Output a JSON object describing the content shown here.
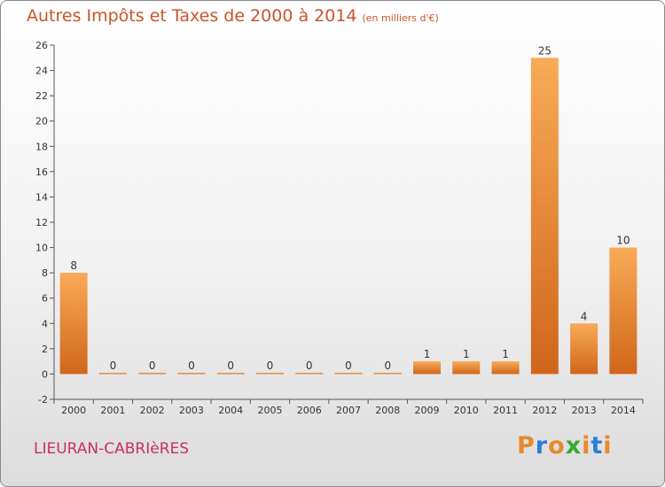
{
  "title": "Autres Impôts et Taxes de 2000 à 2014",
  "subtitle": "(en milliers d'€)",
  "place": "LIEURAN-CABRIèRES",
  "brand": {
    "letters": [
      "P",
      "r",
      "o",
      "x",
      "i",
      "t",
      "i"
    ],
    "colors": [
      "#e8892a",
      "#2a7fd6",
      "#e8892a",
      "#3aa838",
      "#e8892a",
      "#2a7fd6",
      "#e8892a"
    ]
  },
  "colors": {
    "bar_top": "#f9ab57",
    "bar_bottom": "#d0661a",
    "title": "#c8562a",
    "place": "#c8325a"
  },
  "chart_data": {
    "type": "bar",
    "title": "Autres Impôts et Taxes de 2000 à 2014",
    "categories": [
      "2000",
      "2001",
      "2002",
      "2003",
      "2004",
      "2005",
      "2006",
      "2007",
      "2008",
      "2009",
      "2010",
      "2011",
      "2012",
      "2013",
      "2014"
    ],
    "values": [
      8,
      0,
      0,
      0,
      0,
      0,
      0,
      0,
      0,
      1,
      1,
      1,
      25,
      4,
      10
    ],
    "ylim": [
      -2,
      26
    ],
    "yticks": [
      -2,
      0,
      2,
      4,
      6,
      8,
      10,
      12,
      14,
      16,
      18,
      20,
      22,
      24,
      26
    ],
    "grid": false,
    "legend": "none"
  }
}
